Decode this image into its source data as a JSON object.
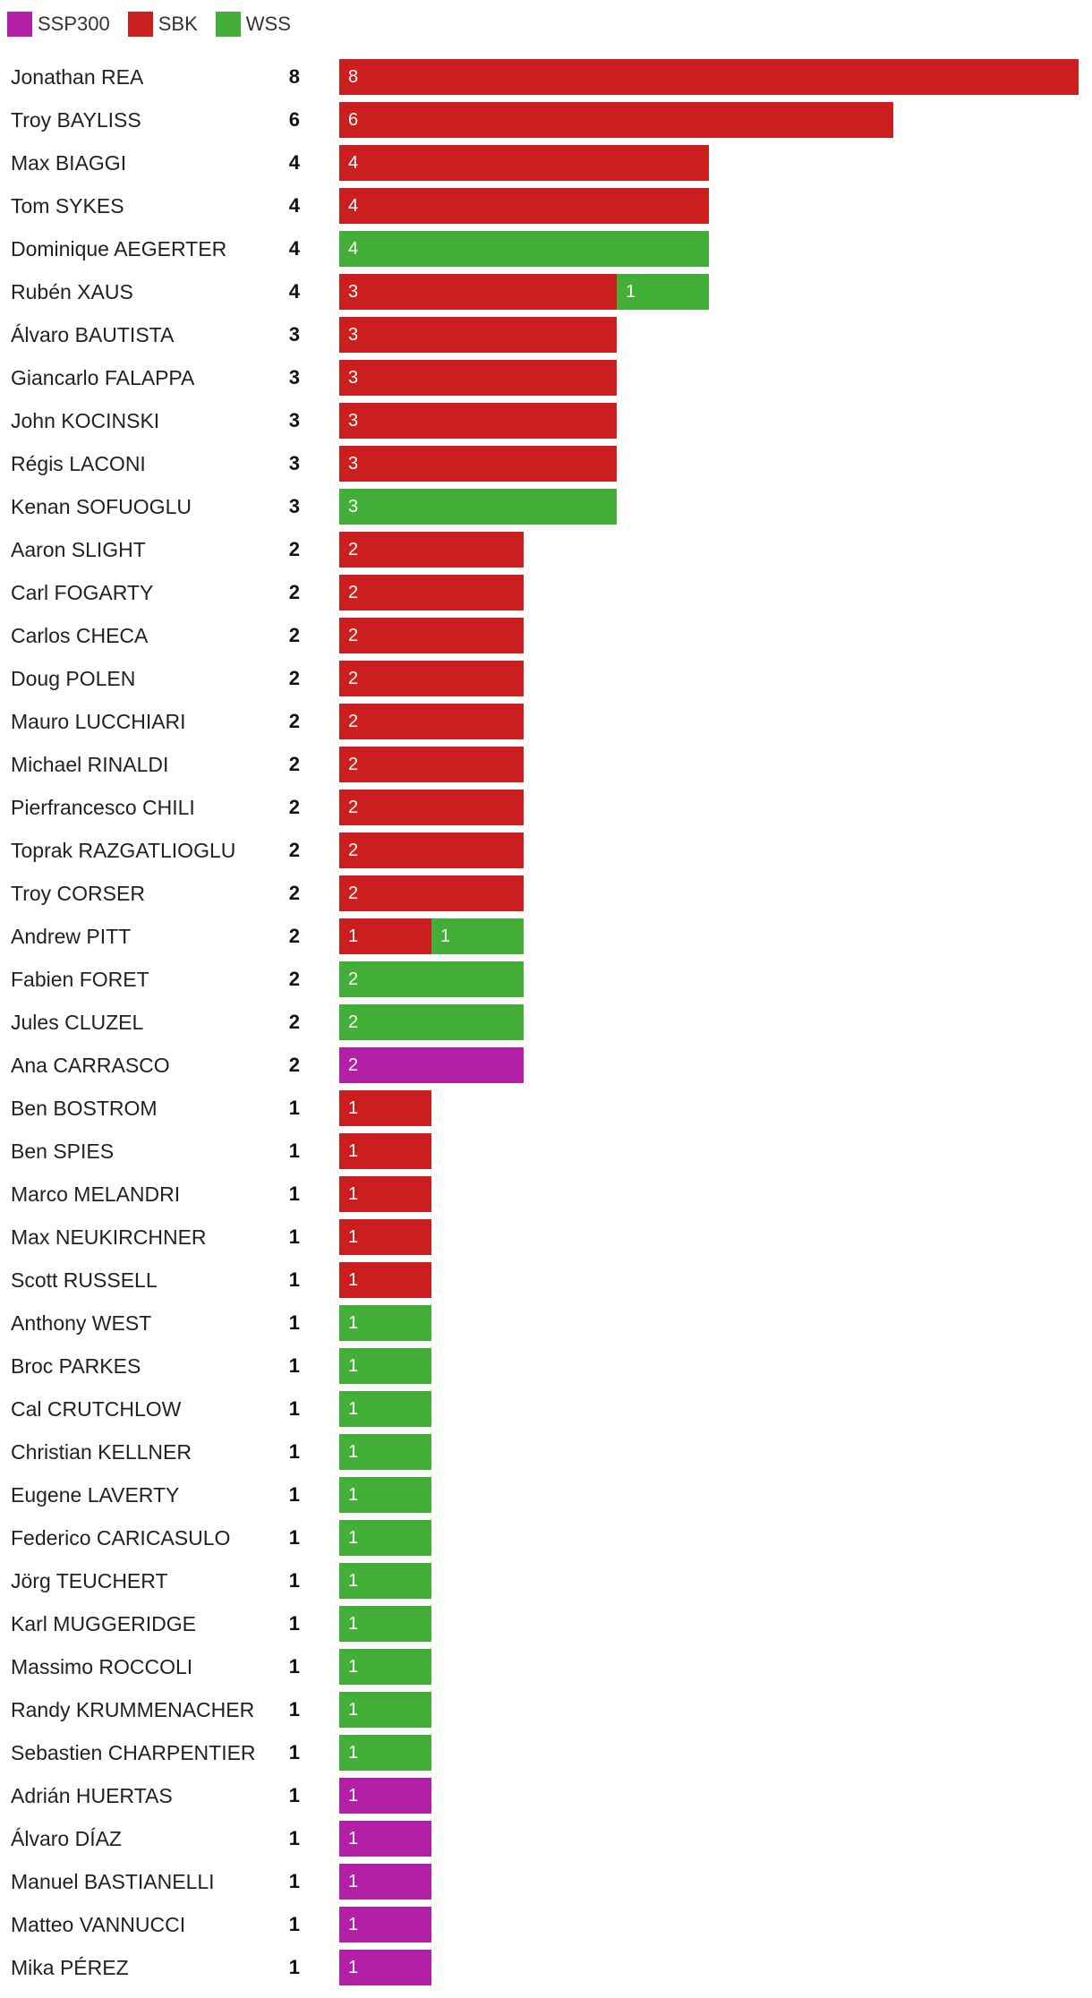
{
  "colors": {
    "SSP300": "#b320a6",
    "SBK": "#cb1f1f",
    "WSS": "#43ae38"
  },
  "chart_data": {
    "type": "bar",
    "orientation": "horizontal",
    "stacked": true,
    "xlim": [
      0,
      8
    ],
    "legend_position": "top-left",
    "grid": false,
    "legend": [
      "SSP300",
      "SBK",
      "WSS"
    ],
    "rows": [
      {
        "name": "Jonathan REA",
        "total": 8,
        "SBK": 8
      },
      {
        "name": "Troy BAYLISS",
        "total": 6,
        "SBK": 6
      },
      {
        "name": "Max BIAGGI",
        "total": 4,
        "SBK": 4
      },
      {
        "name": "Tom SYKES",
        "total": 4,
        "SBK": 4
      },
      {
        "name": "Dominique AEGERTER",
        "total": 4,
        "WSS": 4
      },
      {
        "name": "Rubén XAUS",
        "total": 4,
        "SBK": 3,
        "WSS": 1
      },
      {
        "name": "Álvaro BAUTISTA",
        "total": 3,
        "SBK": 3
      },
      {
        "name": "Giancarlo FALAPPA",
        "total": 3,
        "SBK": 3
      },
      {
        "name": "John KOCINSKI",
        "total": 3,
        "SBK": 3
      },
      {
        "name": "Régis LACONI",
        "total": 3,
        "SBK": 3
      },
      {
        "name": "Kenan SOFUOGLU",
        "total": 3,
        "WSS": 3
      },
      {
        "name": "Aaron SLIGHT",
        "total": 2,
        "SBK": 2
      },
      {
        "name": "Carl FOGARTY",
        "total": 2,
        "SBK": 2
      },
      {
        "name": "Carlos CHECA",
        "total": 2,
        "SBK": 2
      },
      {
        "name": "Doug POLEN",
        "total": 2,
        "SBK": 2
      },
      {
        "name": "Mauro LUCCHIARI",
        "total": 2,
        "SBK": 2
      },
      {
        "name": "Michael RINALDI",
        "total": 2,
        "SBK": 2
      },
      {
        "name": "Pierfrancesco CHILI",
        "total": 2,
        "SBK": 2
      },
      {
        "name": "Toprak RAZGATLIOGLU",
        "total": 2,
        "SBK": 2
      },
      {
        "name": "Troy CORSER",
        "total": 2,
        "SBK": 2
      },
      {
        "name": "Andrew PITT",
        "total": 2,
        "SBK": 1,
        "WSS": 1
      },
      {
        "name": "Fabien FORET",
        "total": 2,
        "WSS": 2
      },
      {
        "name": "Jules CLUZEL",
        "total": 2,
        "WSS": 2
      },
      {
        "name": "Ana CARRASCO",
        "total": 2,
        "SSP300": 2
      },
      {
        "name": "Ben BOSTROM",
        "total": 1,
        "SBK": 1
      },
      {
        "name": "Ben SPIES",
        "total": 1,
        "SBK": 1
      },
      {
        "name": "Marco MELANDRI",
        "total": 1,
        "SBK": 1
      },
      {
        "name": "Max NEUKIRCHNER",
        "total": 1,
        "SBK": 1
      },
      {
        "name": "Scott RUSSELL",
        "total": 1,
        "SBK": 1
      },
      {
        "name": "Anthony WEST",
        "total": 1,
        "WSS": 1
      },
      {
        "name": "Broc PARKES",
        "total": 1,
        "WSS": 1
      },
      {
        "name": "Cal CRUTCHLOW",
        "total": 1,
        "WSS": 1
      },
      {
        "name": "Christian KELLNER",
        "total": 1,
        "WSS": 1
      },
      {
        "name": "Eugene LAVERTY",
        "total": 1,
        "WSS": 1
      },
      {
        "name": "Federico CARICASULO",
        "total": 1,
        "WSS": 1
      },
      {
        "name": "Jörg TEUCHERT",
        "total": 1,
        "WSS": 1
      },
      {
        "name": "Karl MUGGERIDGE",
        "total": 1,
        "WSS": 1
      },
      {
        "name": "Massimo ROCCOLI",
        "total": 1,
        "WSS": 1
      },
      {
        "name": "Randy KRUMMENACHER",
        "total": 1,
        "WSS": 1
      },
      {
        "name": "Sebastien CHARPENTIER",
        "total": 1,
        "WSS": 1
      },
      {
        "name": "Adrián HUERTAS",
        "total": 1,
        "SSP300": 1
      },
      {
        "name": "Álvaro DÍAZ",
        "total": 1,
        "SSP300": 1
      },
      {
        "name": "Manuel BASTIANELLI",
        "total": 1,
        "SSP300": 1
      },
      {
        "name": "Matteo VANNUCCI",
        "total": 1,
        "SSP300": 1
      },
      {
        "name": "Mika PÉREZ",
        "total": 1,
        "SSP300": 1
      }
    ]
  }
}
